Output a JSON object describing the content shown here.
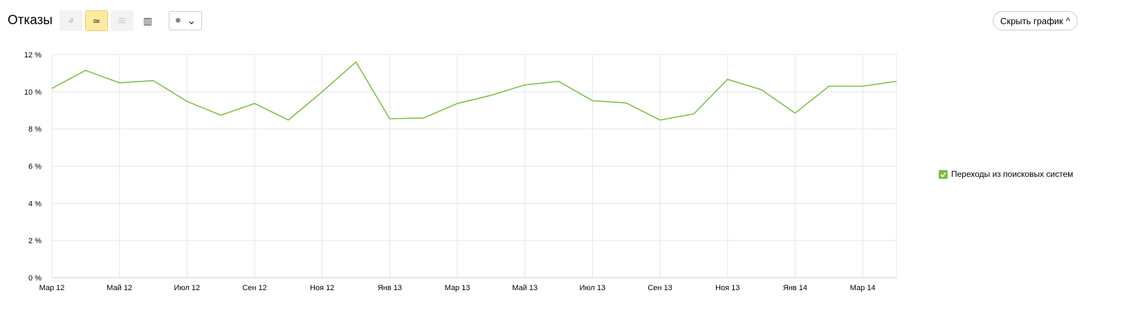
{
  "header": {
    "title": "Отказы",
    "hide_chart_label": "Скрыть график"
  },
  "toolbar": {
    "icons": [
      "pie-chart-icon",
      "line-chart-icon",
      "stacked-area-icon",
      "bar-chart-icon",
      "comment-icon"
    ],
    "active": "line-chart-icon"
  },
  "legend": {
    "label": "Переходы из поисковых систем",
    "checked": true,
    "color": "#7bc043"
  },
  "chart_data": {
    "type": "line",
    "ylim": [
      0,
      12
    ],
    "yticks": [
      "0 %",
      "2 %",
      "4 %",
      "6 %",
      "8 %",
      "10 %",
      "12 %"
    ],
    "xtick_labels": [
      "Мар 12",
      "Май 12",
      "Июл 12",
      "Сен 12",
      "Ноя 12",
      "Янв 13",
      "Мар 13",
      "Май 13",
      "Июл 13",
      "Сен 13",
      "Ноя 13",
      "Янв 14",
      "Мар 14"
    ],
    "grid": true,
    "legend_position": "right",
    "series": [
      {
        "name": "Переходы из поисковых систем",
        "color": "#7bc043",
        "x": [
          "2012-03",
          "2012-04",
          "2012-05",
          "2012-06",
          "2012-07",
          "2012-08",
          "2012-09",
          "2012-10",
          "2012-11",
          "2012-12",
          "2013-01",
          "2013-02",
          "2013-03",
          "2013-04",
          "2013-05",
          "2013-06",
          "2013-07",
          "2013-08",
          "2013-09",
          "2013-10",
          "2013-11",
          "2013-12",
          "2014-01",
          "2014-02",
          "2014-03",
          "2014-04"
        ],
        "values": [
          10.18,
          11.15,
          10.48,
          10.6,
          9.48,
          8.74,
          9.37,
          8.48,
          10.0,
          11.6,
          8.55,
          8.59,
          9.37,
          9.81,
          10.37,
          10.56,
          9.52,
          9.4,
          8.48,
          8.81,
          10.67,
          10.11,
          8.85,
          10.3,
          10.3,
          10.56
        ]
      }
    ]
  }
}
